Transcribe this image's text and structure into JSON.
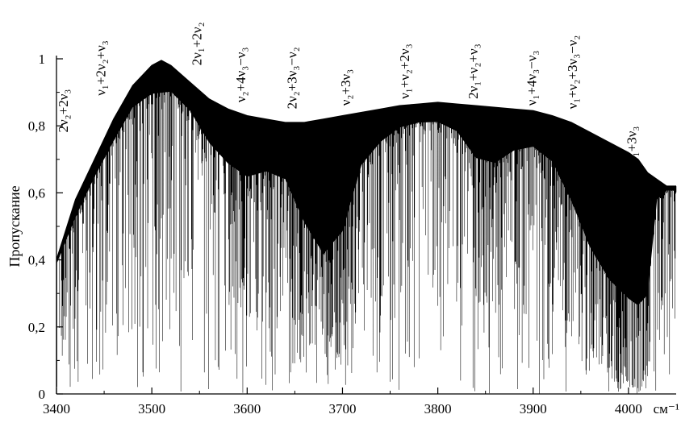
{
  "chart_data": {
    "type": "line",
    "title": "",
    "xlabel": "см⁻¹",
    "ylabel": "Пропускание",
    "xlim": [
      3400,
      4050
    ],
    "ylim": [
      0,
      1
    ],
    "grid": false,
    "x_ticks": [
      {
        "value": 3400,
        "label": "3400"
      },
      {
        "value": 3500,
        "label": "3500"
      },
      {
        "value": 3600,
        "label": "3600"
      },
      {
        "value": 3700,
        "label": "3700"
      },
      {
        "value": 3800,
        "label": "3800"
      },
      {
        "value": 3900,
        "label": "3900"
      },
      {
        "value": 4000,
        "label": "4000"
      }
    ],
    "y_ticks": [
      {
        "value": 0,
        "label": "0"
      },
      {
        "value": 0.2,
        "label": "0,2"
      },
      {
        "value": 0.4,
        "label": "0,4"
      },
      {
        "value": 0.6,
        "label": "0,6"
      },
      {
        "value": 0.8,
        "label": "0,8"
      },
      {
        "value": 1,
        "label": "1"
      }
    ],
    "series": [
      {
        "style": "dense absorption spectrum",
        "upper_envelope": {
          "x": [
            3400,
            3420,
            3440,
            3460,
            3480,
            3500,
            3510,
            3520,
            3540,
            3560,
            3580,
            3600,
            3620,
            3640,
            3660,
            3680,
            3700,
            3720,
            3740,
            3760,
            3780,
            3800,
            3820,
            3840,
            3860,
            3880,
            3900,
            3920,
            3940,
            3960,
            3980,
            4000,
            4010,
            4020,
            4030,
            4040,
            4050
          ],
          "y": [
            0.4,
            0.58,
            0.7,
            0.82,
            0.92,
            0.98,
            0.995,
            0.98,
            0.93,
            0.88,
            0.85,
            0.83,
            0.82,
            0.81,
            0.81,
            0.82,
            0.83,
            0.84,
            0.85,
            0.86,
            0.865,
            0.87,
            0.865,
            0.86,
            0.855,
            0.85,
            0.845,
            0.83,
            0.81,
            0.78,
            0.75,
            0.72,
            0.7,
            0.66,
            0.64,
            0.62,
            0.62
          ]
        },
        "band_depths": {
          "x": [
            3400,
            3420,
            3440,
            3460,
            3480,
            3500,
            3520,
            3540,
            3560,
            3580,
            3600,
            3620,
            3640,
            3660,
            3680,
            3700,
            3720,
            3740,
            3760,
            3780,
            3800,
            3820,
            3840,
            3860,
            3880,
            3900,
            3920,
            3940,
            3960,
            3980,
            4000,
            4010,
            4020,
            4030,
            4040,
            4050
          ],
          "y": [
            0.38,
            0.5,
            0.62,
            0.72,
            0.82,
            0.85,
            0.86,
            0.8,
            0.68,
            0.6,
            0.55,
            0.58,
            0.55,
            0.35,
            0.2,
            0.3,
            0.6,
            0.7,
            0.76,
            0.78,
            0.78,
            0.74,
            0.62,
            0.6,
            0.66,
            0.68,
            0.62,
            0.45,
            0.25,
            0.12,
            0.05,
            0.03,
            0.1,
            0.55,
            0.6,
            0.6
          ]
        }
      }
    ],
    "annotations": [
      {
        "label": "2ν₂+2ν₃",
        "x": 3412,
        "y": 0.78
      },
      {
        "label": "ν₁+2ν₂+ν₃",
        "x": 3451,
        "y": 0.89
      },
      {
        "label": "2ν₁+2ν₂",
        "x": 3552,
        "y": 0.98
      },
      {
        "label": "ν₂+4ν₃−ν₃",
        "x": 3598,
        "y": 0.87
      },
      {
        "label": "2ν₂+3ν₃−ν₂",
        "x": 3652,
        "y": 0.85
      },
      {
        "label": "ν₂+3ν₃",
        "x": 3708,
        "y": 0.86
      },
      {
        "label": "ν₁+ν₂+2ν₃",
        "x": 3770,
        "y": 0.88
      },
      {
        "label": "2ν₁+ν₂+ν₃",
        "x": 3842,
        "y": 0.88
      },
      {
        "label": "ν₁+4ν₃−ν₃",
        "x": 3903,
        "y": 0.86
      },
      {
        "label": "ν₁+ν₂+3ν₃−ν₂",
        "x": 3946,
        "y": 0.85
      },
      {
        "label": "ν₁+3ν₃",
        "x": 4008,
        "y": 0.69
      }
    ]
  }
}
